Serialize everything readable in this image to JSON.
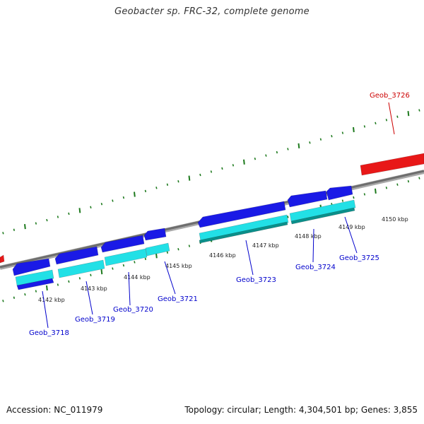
{
  "title": "Geobacter sp. FRC-32, complete genome",
  "footer": {
    "accession": "Accession: NC_011979",
    "stats": "Topology: circular; Length: 4,304,501 bp; Genes: 3,855"
  },
  "colors": {
    "backbone": "#808080",
    "ticks": "#1e7a1e",
    "gene_forward": "#1a1ae6",
    "gene_cds": "#22e0e6",
    "gene_highlight": "#e81818",
    "label_blue": "#0000cc",
    "label_red": "#cc0000"
  },
  "scale_labels": [
    "4142 kbp",
    "4143 kbp",
    "4144 kbp",
    "4145 kbp",
    "4146 kbp",
    "4147 kbp",
    "4148 kbp",
    "4149 kbp",
    "4150 kbp"
  ],
  "gene_labels": [
    "Geob_3718",
    "Geob_3719",
    "Geob_3720",
    "Geob_3721",
    "Geob_3723",
    "Geob_3724",
    "Geob_3725",
    "Geob_3726"
  ]
}
